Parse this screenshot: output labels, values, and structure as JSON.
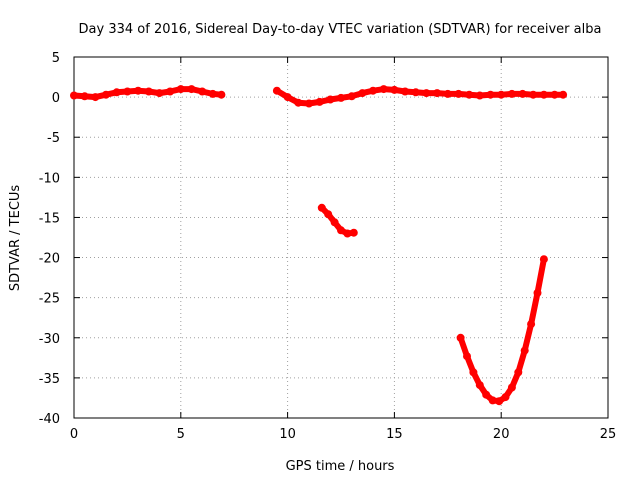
{
  "chart_data": {
    "type": "scatter",
    "title": "Day 334 of 2016, Sidereal Day-to-day VTEC variation (SDTVAR) for receiver alba",
    "xlabel": "GPS time / hours",
    "ylabel": "SDTVAR / TECUs",
    "xlim": [
      0,
      25
    ],
    "ylim": [
      -40,
      5
    ],
    "xticks": [
      "0",
      "5",
      "10",
      "15",
      "20",
      "25"
    ],
    "yticks": [
      "5",
      "0",
      "-5",
      "-10",
      "-15",
      "-20",
      "-25",
      "-30",
      "-35",
      "-40"
    ],
    "grid": true,
    "color": "#ff0000",
    "series": [
      {
        "name": "segment-1",
        "points": [
          [
            0.0,
            0.2
          ],
          [
            0.5,
            0.1
          ],
          [
            1.0,
            0.0
          ],
          [
            1.5,
            0.3
          ],
          [
            2.0,
            0.6
          ],
          [
            2.5,
            0.7
          ],
          [
            3.0,
            0.8
          ],
          [
            3.5,
            0.7
          ],
          [
            4.0,
            0.5
          ],
          [
            4.5,
            0.7
          ],
          [
            5.0,
            1.0
          ],
          [
            5.5,
            1.0
          ],
          [
            6.0,
            0.7
          ],
          [
            6.5,
            0.4
          ],
          [
            6.9,
            0.3
          ]
        ]
      },
      {
        "name": "segment-2",
        "points": [
          [
            9.5,
            0.8
          ],
          [
            10.0,
            0.0
          ],
          [
            10.5,
            -0.7
          ],
          [
            11.0,
            -0.8
          ],
          [
            11.5,
            -0.6
          ],
          [
            12.0,
            -0.3
          ],
          [
            12.5,
            -0.1
          ],
          [
            13.0,
            0.1
          ],
          [
            13.5,
            0.5
          ],
          [
            14.0,
            0.8
          ],
          [
            14.5,
            1.0
          ],
          [
            15.0,
            0.9
          ],
          [
            15.5,
            0.7
          ],
          [
            16.0,
            0.6
          ],
          [
            16.5,
            0.5
          ],
          [
            17.0,
            0.5
          ],
          [
            17.5,
            0.4
          ],
          [
            18.0,
            0.4
          ],
          [
            18.5,
            0.3
          ],
          [
            19.0,
            0.2
          ],
          [
            19.5,
            0.3
          ],
          [
            20.0,
            0.3
          ],
          [
            20.5,
            0.4
          ],
          [
            21.0,
            0.4
          ],
          [
            21.5,
            0.3
          ],
          [
            22.0,
            0.3
          ],
          [
            22.5,
            0.3
          ],
          [
            22.9,
            0.3
          ]
        ]
      },
      {
        "name": "segment-3",
        "points": [
          [
            11.6,
            -13.8
          ],
          [
            11.9,
            -14.6
          ],
          [
            12.2,
            -15.6
          ],
          [
            12.5,
            -16.6
          ],
          [
            12.8,
            -17.0
          ],
          [
            13.1,
            -16.9
          ]
        ]
      },
      {
        "name": "segment-4",
        "points": [
          [
            18.1,
            -30.0
          ],
          [
            18.4,
            -32.3
          ],
          [
            18.7,
            -34.3
          ],
          [
            19.0,
            -35.9
          ],
          [
            19.3,
            -37.1
          ],
          [
            19.6,
            -37.8
          ],
          [
            19.9,
            -37.9
          ],
          [
            20.2,
            -37.4
          ],
          [
            20.5,
            -36.2
          ],
          [
            20.8,
            -34.3
          ],
          [
            21.1,
            -31.6
          ],
          [
            21.4,
            -28.3
          ],
          [
            21.7,
            -24.4
          ],
          [
            22.0,
            -20.2
          ]
        ]
      }
    ]
  }
}
